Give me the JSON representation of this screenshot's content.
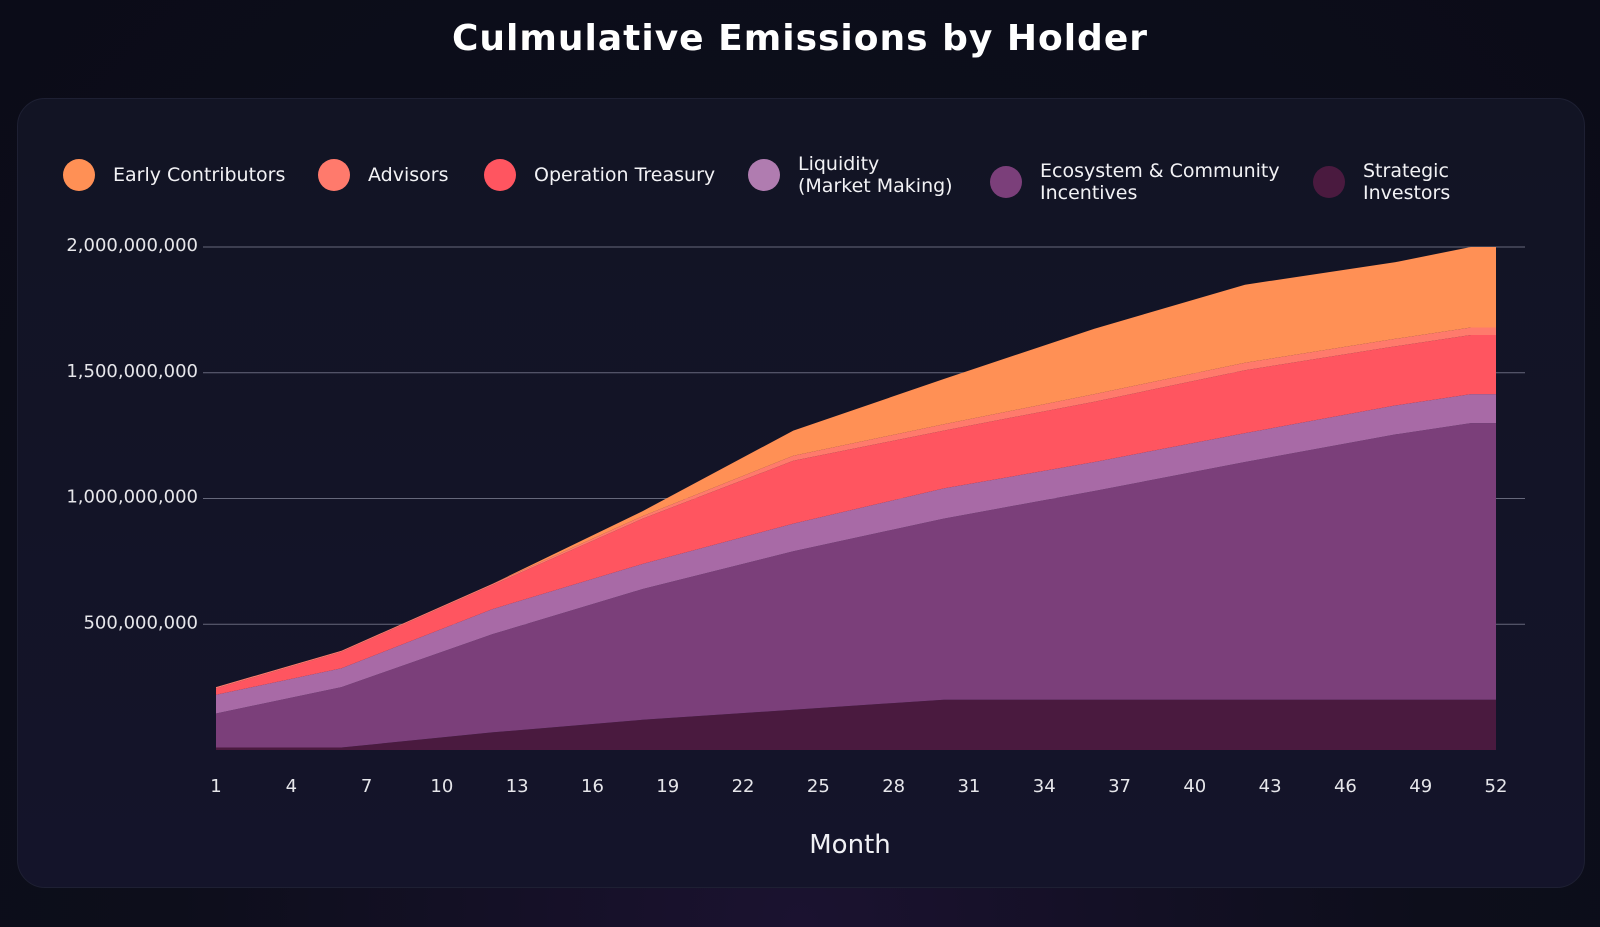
{
  "chart_data": {
    "type": "area",
    "stacked": true,
    "title": "Culmulative Emissions by Holder",
    "xlabel": "Month",
    "ylabel": "",
    "xlim": [
      1,
      52
    ],
    "ylim": [
      0,
      2000000000
    ],
    "x_ticks": [
      1,
      4,
      7,
      10,
      13,
      16,
      19,
      22,
      25,
      28,
      31,
      34,
      37,
      40,
      43,
      46,
      49,
      52
    ],
    "y_ticks": [
      {
        "value": 500000000,
        "label": "500,000,000"
      },
      {
        "value": 1000000000,
        "label": "1,000,000,000"
      },
      {
        "value": 1500000000,
        "label": "1,500,000,000"
      },
      {
        "value": 2000000000,
        "label": "2,000,000,000"
      }
    ],
    "grid": true,
    "legend_position": "top",
    "x": [
      1,
      6,
      12,
      18,
      24,
      30,
      36,
      42,
      48,
      51,
      52
    ],
    "series": [
      {
        "name": "Strategic Investors",
        "color": "#4a1a3f",
        "values": [
          10000000,
          10000000,
          70000000,
          120000000,
          160000000,
          200000000,
          200000000,
          200000000,
          200000000,
          200000000,
          200000000
        ]
      },
      {
        "name": "Ecosystem & Community Incentives",
        "color": "#7b3f7a",
        "values": [
          135000000,
          240000000,
          390000000,
          520000000,
          630000000,
          720000000,
          830000000,
          945000000,
          1055000000,
          1100000000,
          1100000000
        ]
      },
      {
        "name": "Liquidity (Market Making)",
        "color": "#a86aa6",
        "values": [
          75000000,
          75000000,
          100000000,
          100000000,
          110000000,
          120000000,
          115000000,
          115000000,
          115000000,
          115000000,
          115000000
        ]
      },
      {
        "name": "Operation Treasury",
        "color": "#ff5560",
        "values": [
          25000000,
          65000000,
          95000000,
          180000000,
          250000000,
          230000000,
          240000000,
          250000000,
          235000000,
          235000000,
          235000000
        ]
      },
      {
        "name": "Advisors",
        "color": "#ff7a6c",
        "values": [
          5000000,
          5000000,
          5000000,
          10000000,
          20000000,
          25000000,
          30000000,
          30000000,
          30000000,
          30000000,
          30000000
        ]
      },
      {
        "name": "Early Contributors",
        "color": "#ff9055",
        "values": [
          0,
          0,
          0,
          20000000,
          100000000,
          180000000,
          260000000,
          310000000,
          305000000,
          320000000,
          320000000
        ]
      }
    ]
  },
  "legend": [
    {
      "label": "Early Contributors",
      "color": "#ff9055"
    },
    {
      "label": "Advisors",
      "color": "#ff7a6c"
    },
    {
      "label": "Operation Treasury",
      "color": "#ff5560"
    },
    {
      "label": "Liquidity\n(Market Making)",
      "color": "#b07cb0"
    },
    {
      "label": "Ecosystem & Community\nIncentives",
      "color": "#7b3f7a"
    },
    {
      "label": "Strategic\nInvestors",
      "color": "#4a1a3f"
    }
  ]
}
